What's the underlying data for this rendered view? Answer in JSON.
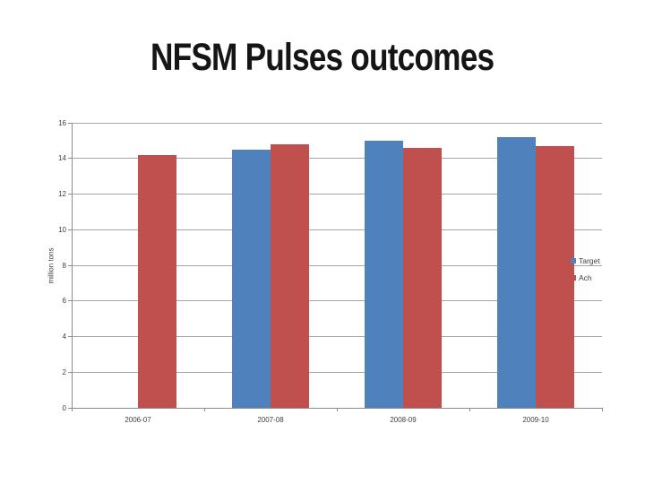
{
  "slide": {
    "title": "NFSM Pulses outcomes",
    "background_color": "#ffffff"
  },
  "chart_data": {
    "type": "bar",
    "title": "",
    "categories": [
      "2006-07",
      "2007-08",
      "2008-09",
      "2009-10"
    ],
    "series": [
      {
        "name": "Target",
        "color": "#4f81bd",
        "values": [
          null,
          14.5,
          15.0,
          15.2
        ]
      },
      {
        "name": "Ach",
        "color": "#c0504d",
        "values": [
          14.2,
          14.8,
          14.6,
          14.7
        ]
      }
    ],
    "xlabel": "",
    "ylabel": "million tons",
    "ylim": [
      0,
      16
    ],
    "ytick_step": 2,
    "ytick_labels": [
      "0",
      "2",
      "4",
      "6",
      "8",
      "10",
      "12",
      "14",
      "16"
    ],
    "grid": true,
    "legend_position": "right",
    "legend_entries": [
      "Target",
      "Ach"
    ],
    "colors": {
      "target_blue": "#4f81bd",
      "ach_red": "#c0504d",
      "gridline_gray": "#a6a6a6",
      "axis_gray": "#8c8c8c",
      "label_text": "#3f3f3f",
      "title_text": "#151515"
    }
  }
}
